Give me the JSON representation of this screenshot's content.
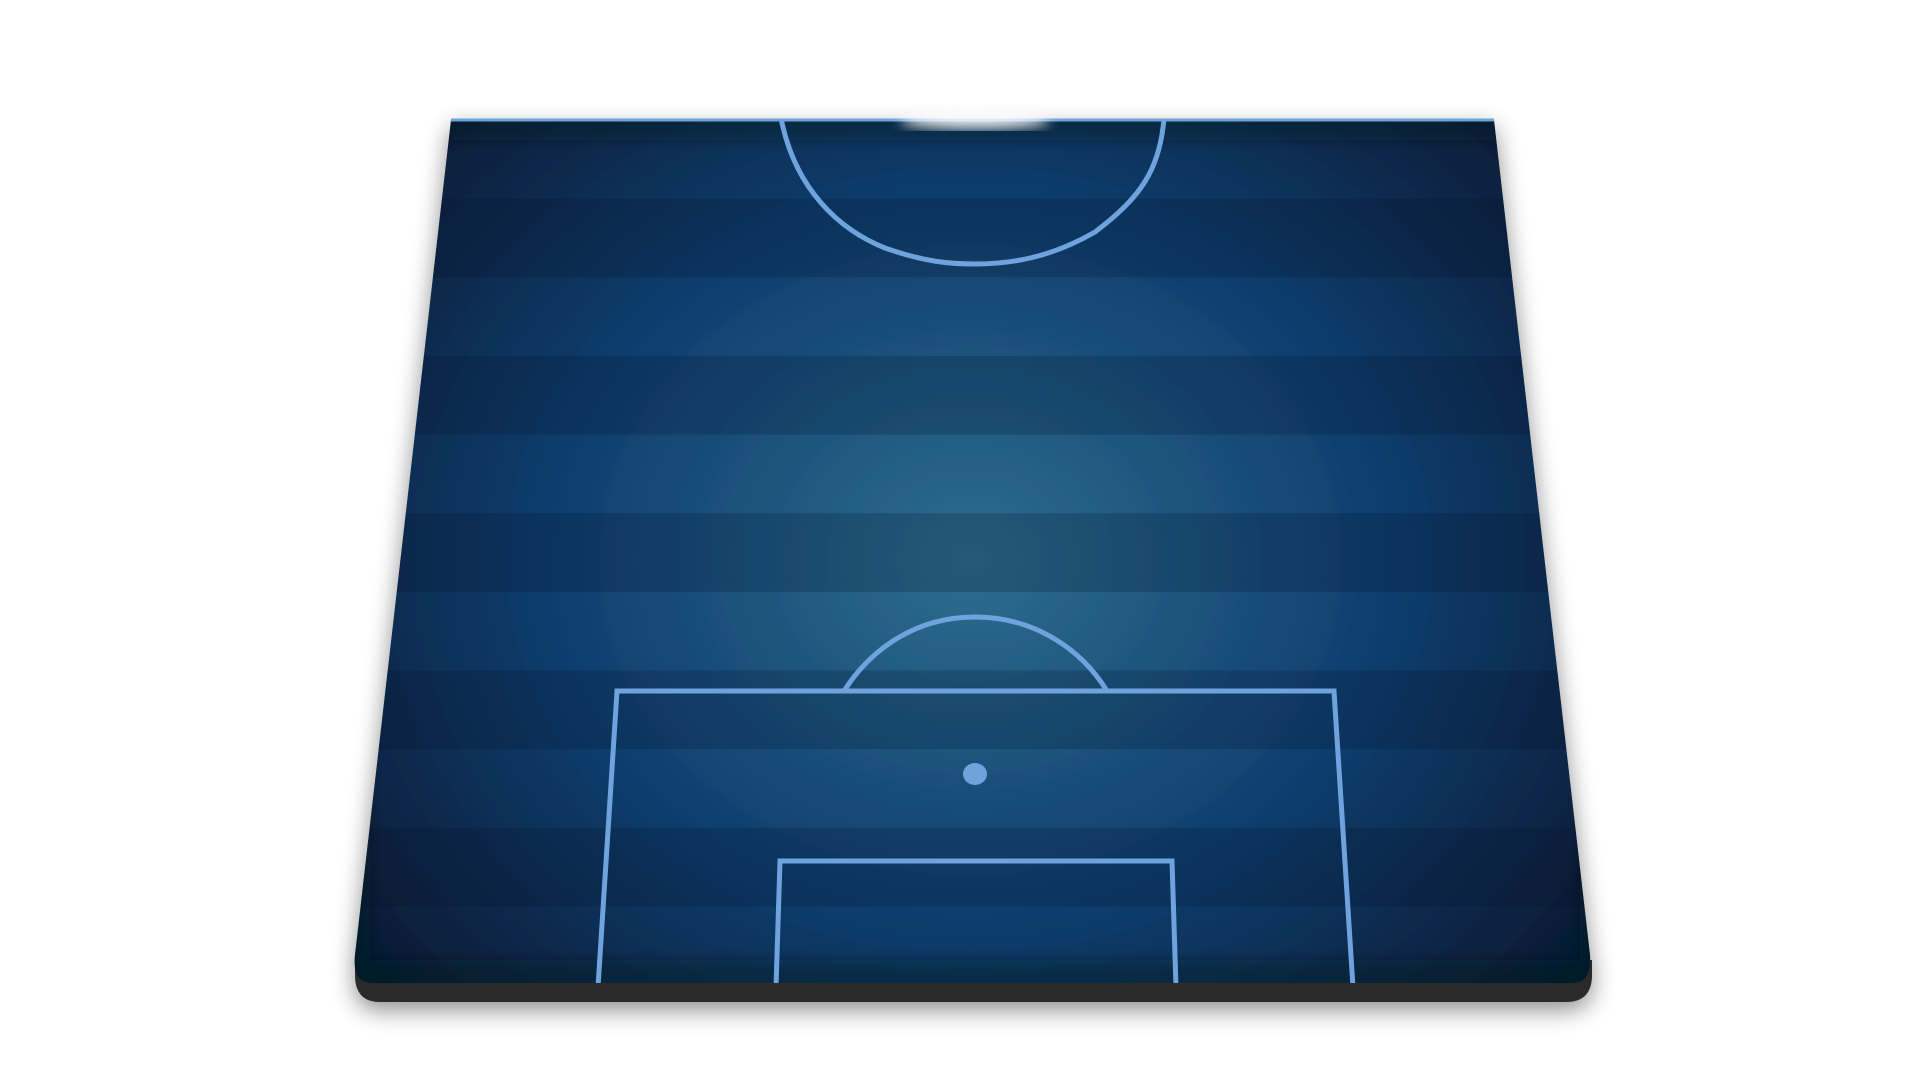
{
  "scene": {
    "view": "half-pitch-perspective",
    "stripe_count": 11
  },
  "colors": {
    "background": "#ffffff",
    "pitch_center": "#2e6e8f",
    "pitch_mid": "#0e3e6e",
    "pitch_edge": "#061a33",
    "stripe_dark": "#04142b",
    "line": "#6fa3de",
    "base": "#2b2b2b",
    "top_glow": "#ffffff"
  },
  "markings": [
    {
      "name": "center-circle-arc"
    },
    {
      "name": "penalty-area"
    },
    {
      "name": "penalty-arc"
    },
    {
      "name": "penalty-spot"
    },
    {
      "name": "goal-area"
    }
  ]
}
